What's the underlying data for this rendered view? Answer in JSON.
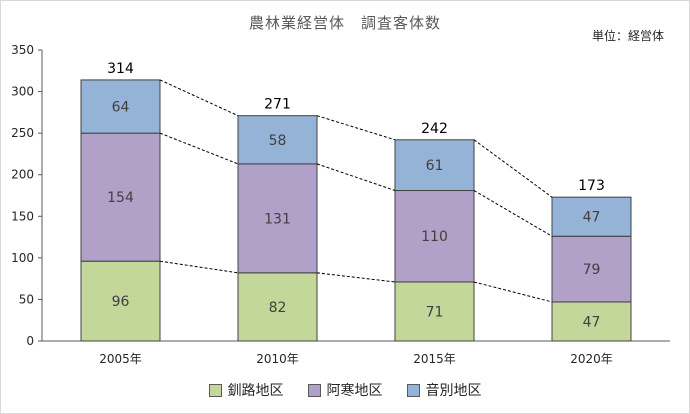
{
  "title": "農林業経営体　調査客体数",
  "unit_label": "単位：経営体",
  "chart_data": {
    "type": "bar",
    "stacked": true,
    "title": "農林業経営体　調査客体数",
    "categories": [
      "2005年",
      "2010年",
      "2015年",
      "2020年"
    ],
    "series": [
      {
        "name": "釧路地区",
        "values": [
          96,
          82,
          71,
          47
        ],
        "color": "#c4d79b"
      },
      {
        "name": "阿寒地区",
        "values": [
          154,
          131,
          110,
          79
        ],
        "color": "#b1a0c7"
      },
      {
        "name": "音別地区",
        "values": [
          64,
          58,
          61,
          47
        ],
        "color": "#95b3d7"
      }
    ],
    "totals": [
      314,
      271,
      242,
      173
    ],
    "ylim": [
      0,
      350
    ],
    "yticks": [
      0,
      50,
      100,
      150,
      200,
      250,
      300,
      350
    ],
    "grid": false,
    "legend_position": "bottom",
    "series_connector_lines": "dashed"
  }
}
